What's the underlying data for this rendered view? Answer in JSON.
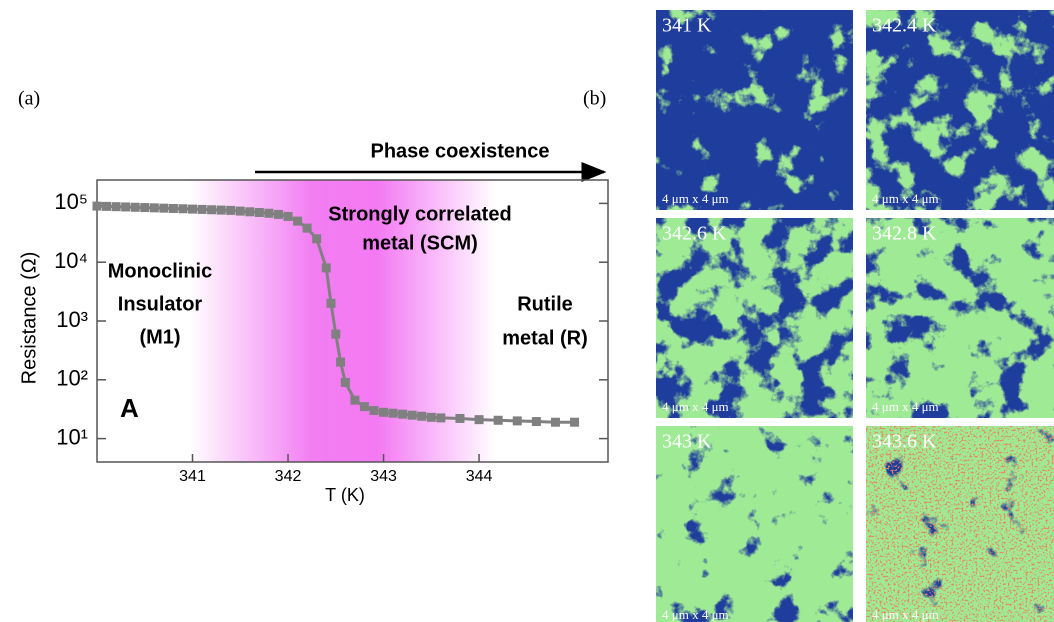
{
  "panel_labels": [
    "(a)",
    "(b)"
  ],
  "chart_data": {
    "type": "line",
    "log_y": true,
    "ylabel": "Resistance (Ω)",
    "xlabel": "T (K)",
    "xlim": [
      340,
      345.35
    ],
    "xticks": [
      341,
      342,
      343,
      344
    ],
    "ylim": [
      4,
      250000
    ],
    "yticks": [
      {
        "value": 10,
        "label": "10¹"
      },
      {
        "value": 100,
        "label": "10²"
      },
      {
        "value": 1000,
        "label": "10³"
      },
      {
        "value": 10000,
        "label": "10⁴"
      },
      {
        "value": 100000,
        "label": "10⁵"
      }
    ],
    "series": [
      {
        "name": "Resistance",
        "color": "#808080",
        "x": [
          340.0,
          340.1,
          340.2,
          340.3,
          340.4,
          340.5,
          340.6,
          340.7,
          340.8,
          340.9,
          341.0,
          341.1,
          341.2,
          341.3,
          341.4,
          341.5,
          341.6,
          341.7,
          341.8,
          341.9,
          342.0,
          342.1,
          342.2,
          342.3,
          342.4,
          342.45,
          342.5,
          342.55,
          342.6,
          342.7,
          342.8,
          342.9,
          343.0,
          343.1,
          343.2,
          343.3,
          343.4,
          343.5,
          343.6,
          343.8,
          344.0,
          344.2,
          344.4,
          344.6,
          344.8,
          345.0
        ],
        "values": [
          90000,
          89000,
          88000,
          87000,
          86000,
          85000,
          84000,
          83000,
          82000,
          81000,
          80000,
          79000,
          78000,
          77000,
          76000,
          74000,
          72000,
          70000,
          68000,
          65000,
          60000,
          50000,
          38000,
          25000,
          8000,
          2000,
          600,
          200,
          90,
          45,
          35,
          30,
          28,
          27,
          26,
          25,
          24,
          23,
          22.5,
          22,
          21,
          20.5,
          20,
          19.5,
          19,
          19
        ]
      }
    ],
    "annotations": {
      "arrow": "Phase coexistence",
      "scm": [
        "Strongly correlated",
        "metal (SCM)"
      ],
      "m1": [
        "Monoclinic",
        "Insulator",
        "(M1)"
      ],
      "r": [
        "Rutile",
        "metal (R)"
      ],
      "panel": "A"
    }
  },
  "maps": [
    {
      "label": "341 K",
      "scale": "4 μm x 4 μm"
    },
    {
      "label": "342.4 K",
      "scale": "4 μm x 4 μm"
    },
    {
      "label": "342.6 K",
      "scale": "4 μm x 4 μm"
    },
    {
      "label": "342.8 K",
      "scale": "4 μm x 4 μm"
    },
    {
      "label": "343 K",
      "scale": "4 μm x 4 μm"
    },
    {
      "label": "343.6 K",
      "scale": "4 μm x 4 μm"
    }
  ]
}
